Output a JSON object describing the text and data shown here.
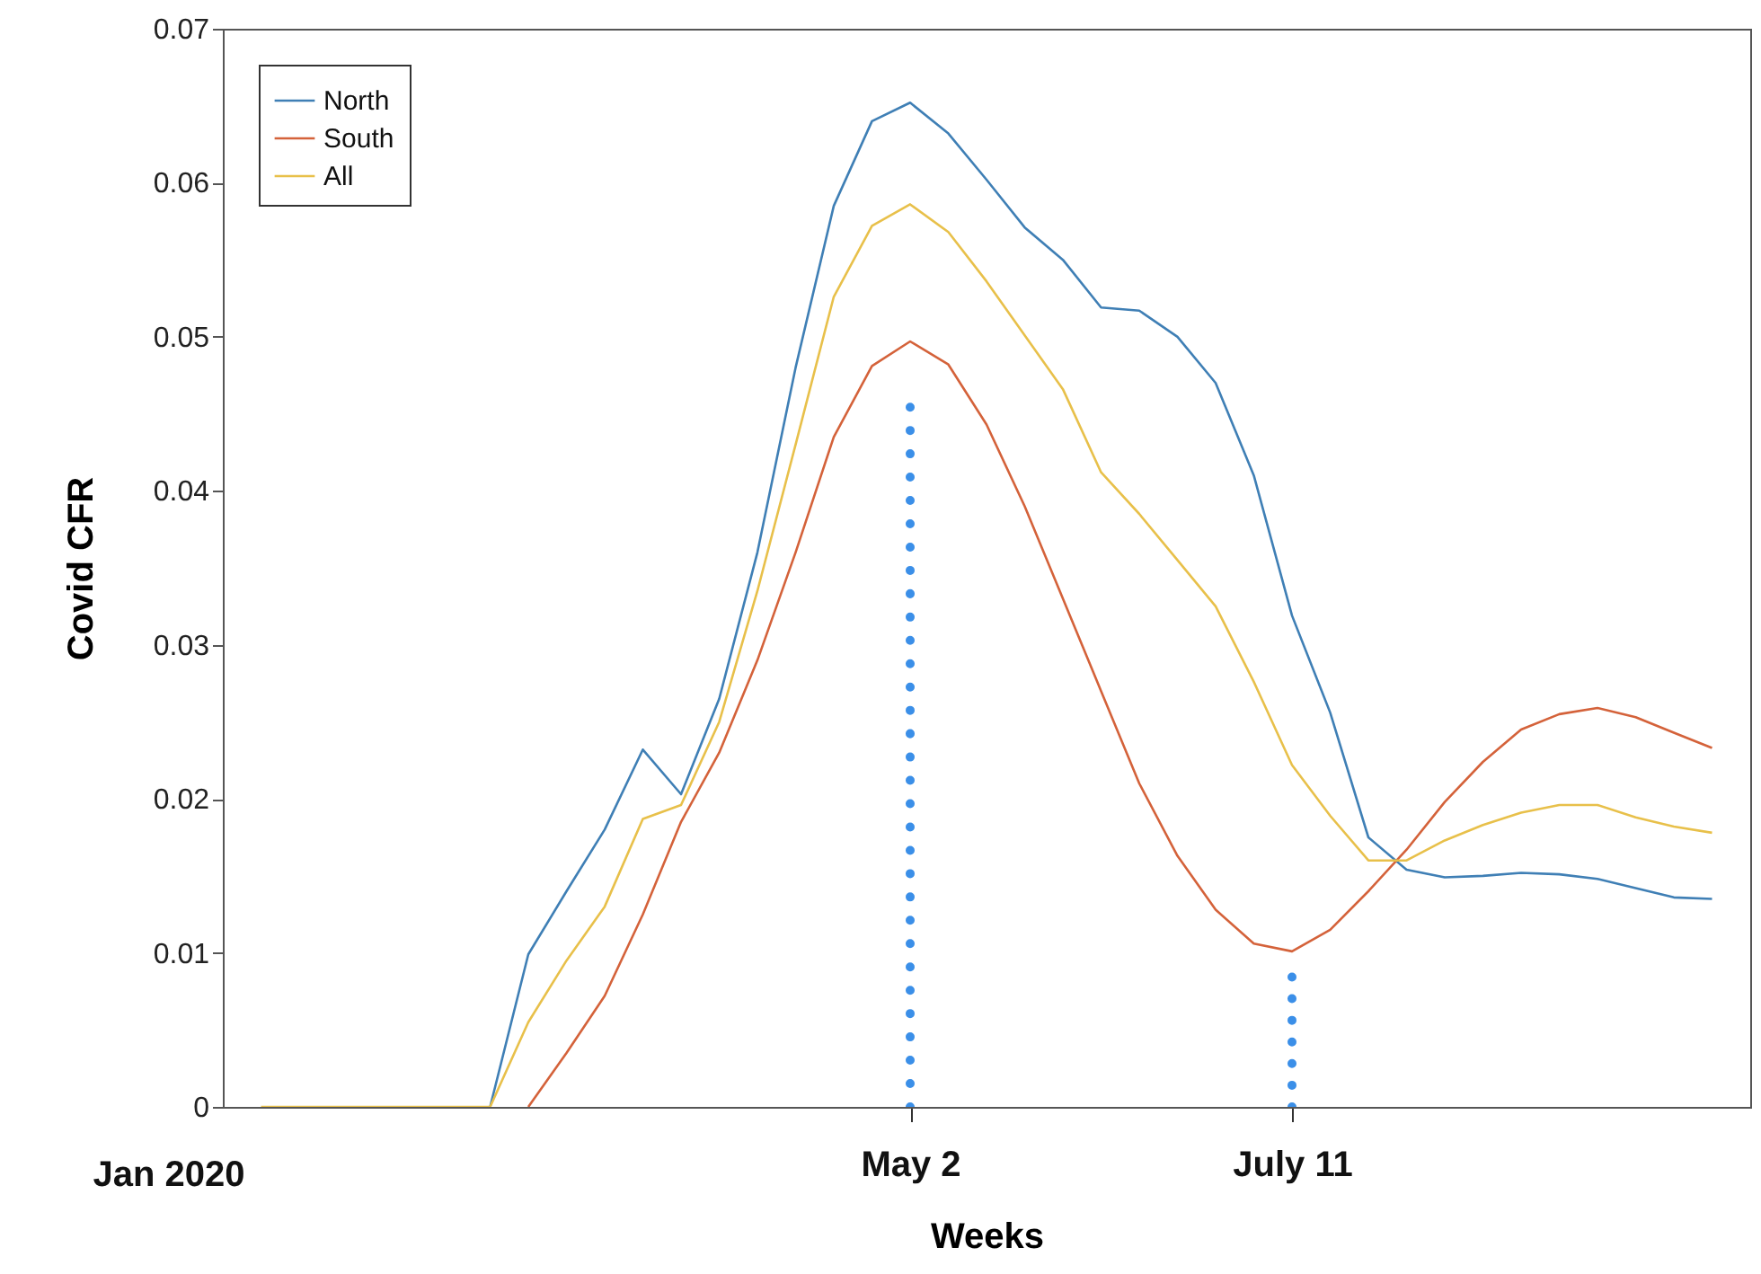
{
  "chart_data": {
    "type": "line",
    "xlabel": "Weeks",
    "ylabel": "Covid CFR",
    "annotations": [
      "Jan 2020"
    ],
    "categories": [
      null,
      null,
      null,
      null,
      null,
      null,
      null,
      null,
      null,
      null,
      null,
      null,
      null,
      null,
      null,
      null,
      null,
      "May 2",
      null,
      null,
      null,
      null,
      null,
      null,
      null,
      null,
      null,
      "July 11",
      null,
      null,
      null,
      null,
      null,
      null,
      null,
      null,
      null,
      null,
      null
    ],
    "ylim": [
      0,
      0.07
    ],
    "yticks": [
      0,
      0.01,
      0.02,
      0.03,
      0.04,
      0.05,
      0.06,
      0.07
    ],
    "legend": "top left",
    "series": [
      {
        "name": "North",
        "color": "#3f7fb5",
        "values": [
          null,
          null,
          null,
          null,
          null,
          null,
          0,
          0.0099,
          0.014,
          0.018,
          0.0232,
          0.0203,
          0.0265,
          0.036,
          0.048,
          0.0585,
          0.064,
          0.0652,
          0.0632,
          0.0602,
          0.0571,
          0.055,
          0.0519,
          0.0517,
          0.05,
          0.047,
          0.041,
          0.0319,
          0.0256,
          0.0175,
          0.0154,
          0.0149,
          0.015,
          0.0152,
          0.0151,
          0.0148,
          0.0142,
          0.0136,
          0.0135
        ]
      },
      {
        "name": "South",
        "color": "#d4623a",
        "values": [
          null,
          null,
          null,
          null,
          null,
          null,
          null,
          0,
          0.0035,
          0.0072,
          0.0125,
          0.0185,
          0.023,
          0.029,
          0.036,
          0.0435,
          0.0481,
          0.0497,
          0.0482,
          0.0443,
          0.039,
          0.033,
          0.027,
          0.021,
          0.0163,
          0.0128,
          0.0106,
          0.0101,
          0.0115,
          0.014,
          0.0167,
          0.0198,
          0.0224,
          0.0245,
          0.0255,
          0.0259,
          0.0253,
          0.0243,
          0.0233
        ]
      },
      {
        "name": "All",
        "color": "#e8c04a",
        "values": [
          0,
          0,
          0,
          0,
          0,
          0,
          0,
          0.0055,
          0.0095,
          0.013,
          0.0187,
          0.0196,
          0.025,
          0.0335,
          0.043,
          0.0526,
          0.0572,
          0.0586,
          0.0568,
          0.0536,
          0.0501,
          0.0466,
          0.0412,
          0.0385,
          0.0355,
          0.0325,
          0.0276,
          0.0222,
          0.0189,
          0.016,
          0.016,
          0.0173,
          0.0183,
          0.0191,
          0.0196,
          0.0196,
          0.0188,
          0.0182,
          0.0178
        ]
      },
      {
        "type": "line",
        "line_style": "dotted",
        "color": "#3b8fe8",
        "x": [
          "May 2",
          "May 2"
        ],
        "values": [
          0,
          0.0455
        ]
      },
      {
        "type": "line",
        "line_style": "dotted",
        "color": "#3b8fe8",
        "x": [
          "July 11",
          "July 11"
        ],
        "values": [
          0,
          0.0085
        ]
      }
    ]
  }
}
